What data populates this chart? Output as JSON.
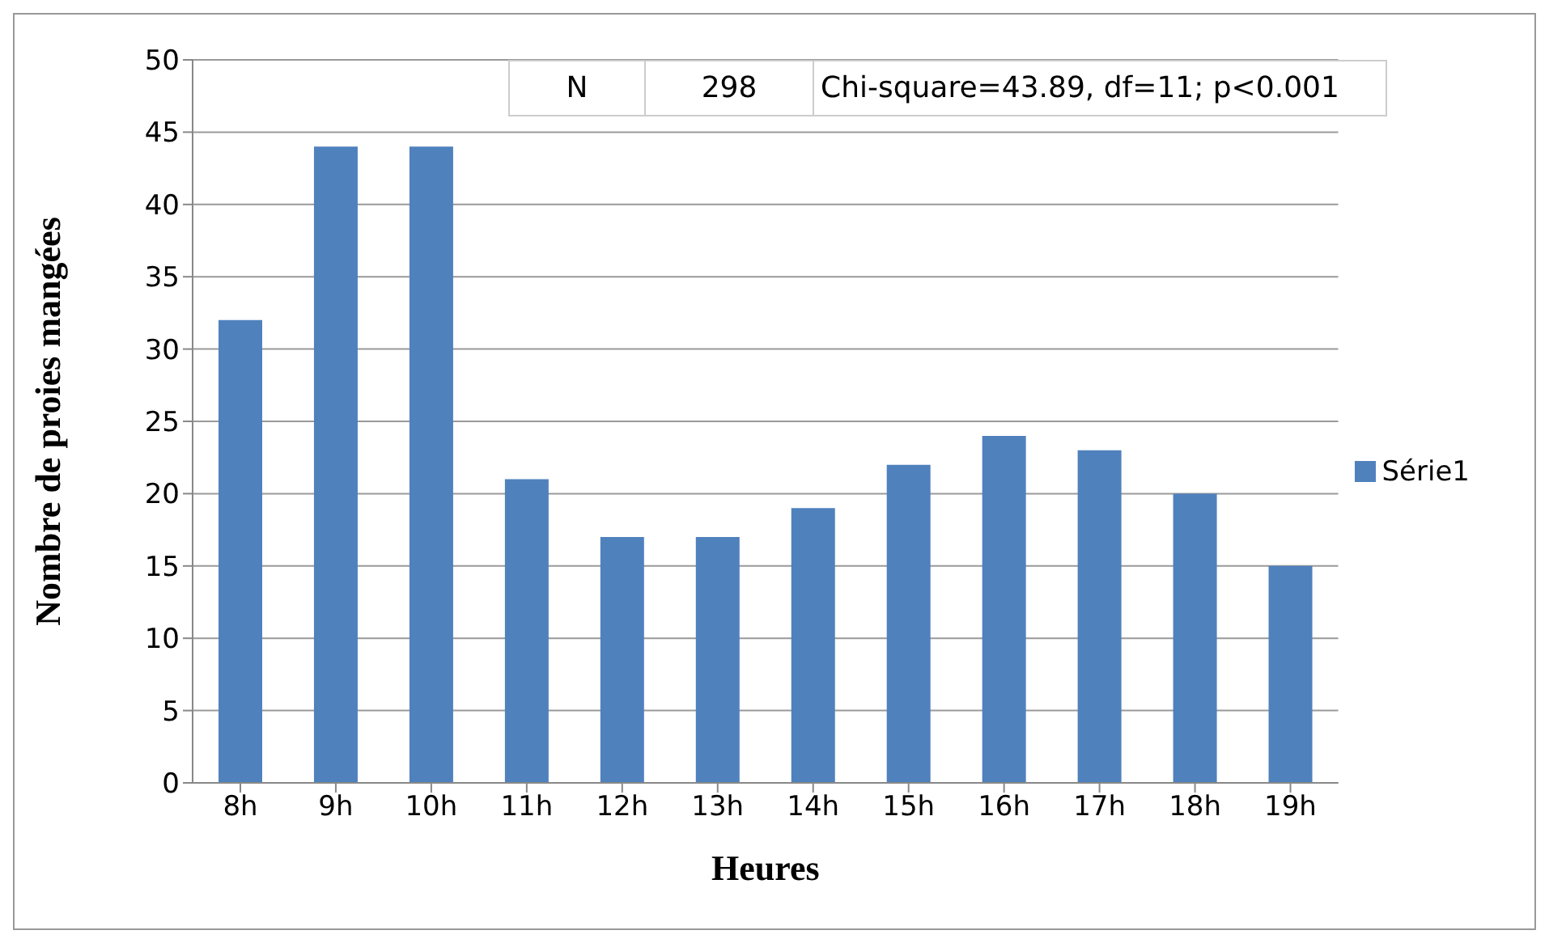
{
  "chart_data": {
    "type": "bar",
    "xlabel": "Heures",
    "ylabel": "Nombre de proies mangées",
    "categories": [
      "8h",
      "9h",
      "10h",
      "11h",
      "12h",
      "13h",
      "14h",
      "15h",
      "16h",
      "17h",
      "18h",
      "19h"
    ],
    "series": [
      {
        "name": "Série1",
        "color": "#4f81bd",
        "values": [
          32,
          44,
          44,
          21,
          17,
          17,
          19,
          22,
          24,
          23,
          20,
          15
        ]
      }
    ],
    "ylim": [
      0,
      50
    ],
    "yticks": [
      0,
      5,
      10,
      15,
      20,
      25,
      30,
      35,
      40,
      45,
      50
    ],
    "grid": "y",
    "legend": "right",
    "annotations": [
      "N",
      "298",
      "Chi-square=43.89, df=11; p<0.001"
    ]
  }
}
